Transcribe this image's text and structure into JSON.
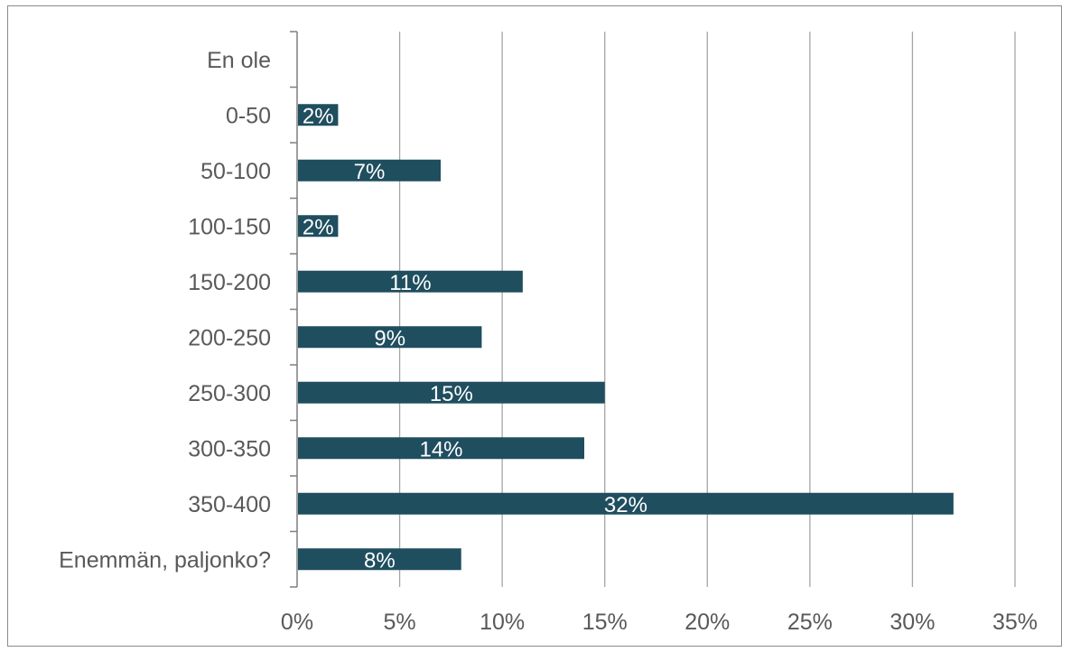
{
  "chart_data": {
    "type": "bar",
    "orientation": "horizontal",
    "categories": [
      "En ole",
      "0-50",
      "50-100",
      "100-150",
      "150-200",
      "200-250",
      "250-300",
      "300-350",
      "350-400",
      "Enemmän, paljonko?"
    ],
    "values": [
      0,
      2,
      7,
      2,
      11,
      9,
      15,
      14,
      32,
      8
    ],
    "data_labels": [
      "",
      "2%",
      "7%",
      "2%",
      "11%",
      "9%",
      "15%",
      "14%",
      "32%",
      "8%"
    ],
    "xlim": [
      0,
      35
    ],
    "x_ticks": [
      0,
      5,
      10,
      15,
      20,
      25,
      30,
      35
    ],
    "x_tick_labels": [
      "0%",
      "5%",
      "10%",
      "15%",
      "20%",
      "25%",
      "30%",
      "35%"
    ],
    "grid": "vertical",
    "legend": "none",
    "colors": {
      "bar": "#1f4e5f",
      "grid": "#a6a6a6",
      "axis": "#7f7f7f",
      "label_text": "#595959",
      "data_label_text": "#ffffff",
      "border": "#8a8a8a"
    }
  }
}
